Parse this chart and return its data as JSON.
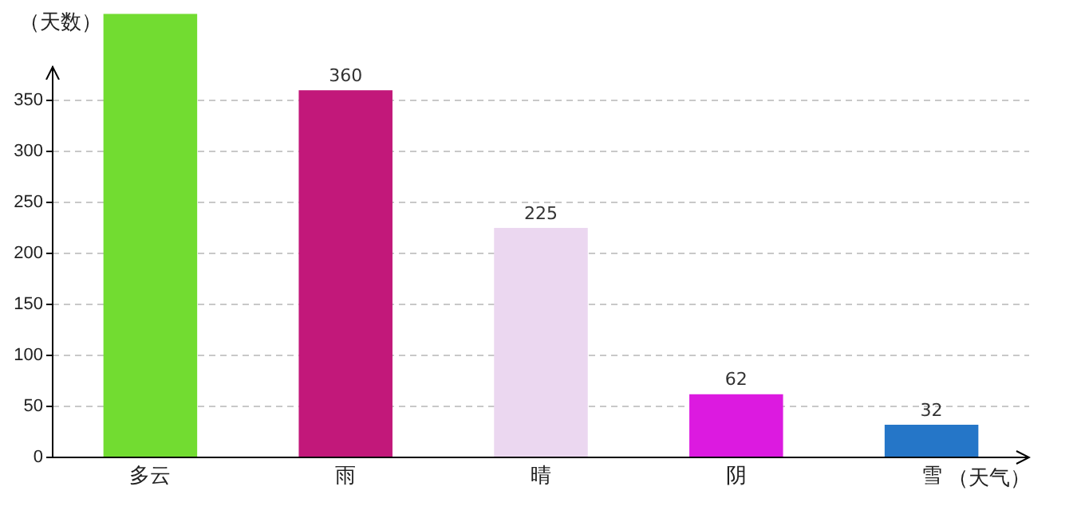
{
  "chart_data": {
    "type": "bar",
    "ylabel": "（天数）",
    "xlabel": "（天气）",
    "categories": [
      "多云",
      "雨",
      "晴",
      "阴",
      "雪"
    ],
    "values": [
      435,
      360,
      225,
      62,
      32
    ],
    "colors": [
      "#72dc31",
      "#c2187a",
      "#ebd7f0",
      "#dc1ae0",
      "#2576c8"
    ],
    "value_labels": [
      null,
      "360",
      "225",
      "62",
      "32"
    ],
    "ylim": [
      0,
      435
    ],
    "yticks": [
      0,
      50,
      100,
      150,
      200,
      250,
      300,
      350
    ],
    "grid": "y",
    "legend": false
  }
}
